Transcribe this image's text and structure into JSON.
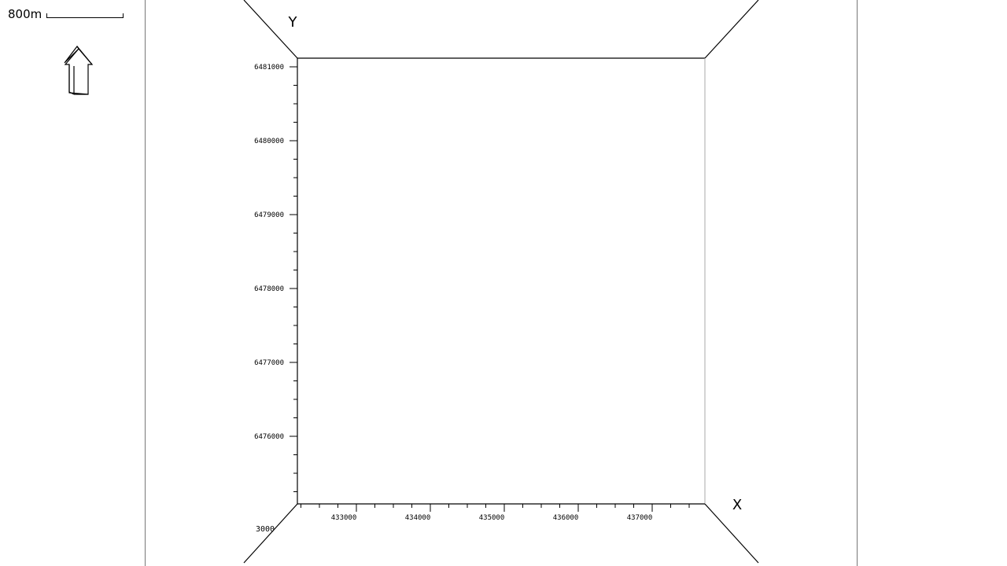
{
  "scale": {
    "label": "800m"
  },
  "icons": {
    "north_arrow": "north-arrow-icon"
  },
  "axes": {
    "x_title": "X",
    "y_title": "Y",
    "x_ticks": [
      "433000",
      "434000",
      "435000",
      "436000",
      "437000"
    ],
    "y_ticks": [
      "6481000",
      "6480000",
      "6479000",
      "6478000",
      "6477000",
      "6476000"
    ],
    "z_tick": "3000"
  }
}
